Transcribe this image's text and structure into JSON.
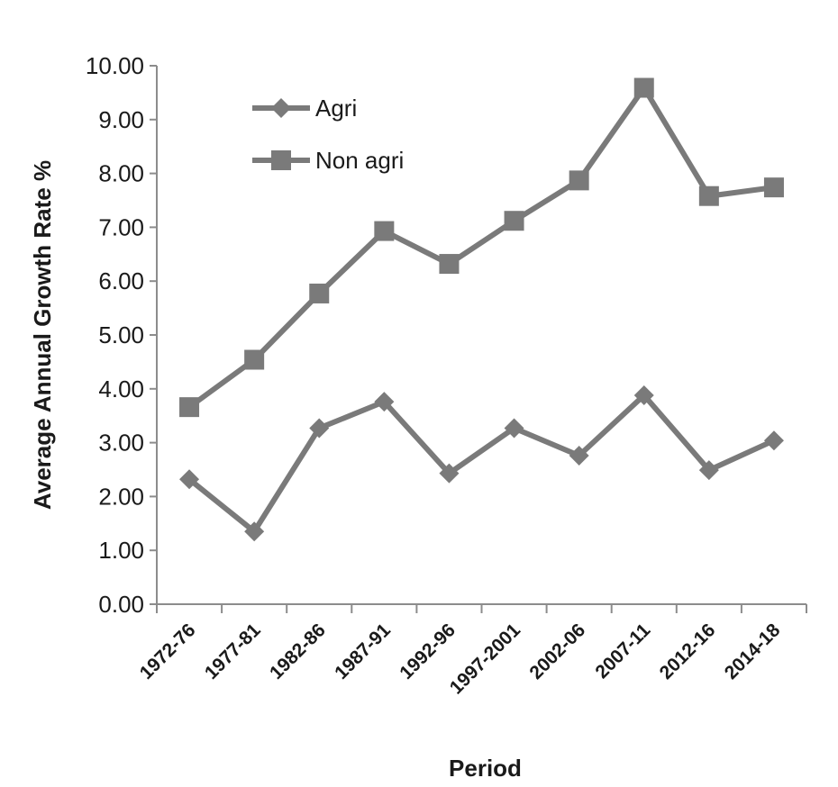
{
  "chart_data": {
    "type": "line",
    "title": "",
    "xlabel": "Period",
    "ylabel": "Average Annual Growth Rate %",
    "categories": [
      "1972-76",
      "1977-81",
      "1982-86",
      "1987-91",
      "1992-96",
      "1997-2001",
      "2002-06",
      "2007-11",
      "2012-16",
      "2014-18"
    ],
    "ylim": [
      0,
      10
    ],
    "yticks": [
      "0.00",
      "1.00",
      "2.00",
      "3.00",
      "4.00",
      "5.00",
      "6.00",
      "7.00",
      "8.00",
      "9.00",
      "10.00"
    ],
    "grid": false,
    "legend_position": "top-left",
    "series": [
      {
        "name": "Agri",
        "marker": "diamond",
        "color": "#7a7a7a",
        "values": [
          2.32,
          1.35,
          3.27,
          3.76,
          2.43,
          3.27,
          2.76,
          3.88,
          2.49,
          3.04
        ]
      },
      {
        "name": "Non agri",
        "marker": "square",
        "color": "#7a7a7a",
        "values": [
          3.66,
          4.54,
          5.77,
          6.93,
          6.32,
          7.12,
          7.87,
          9.59,
          7.58,
          7.74
        ]
      }
    ]
  }
}
